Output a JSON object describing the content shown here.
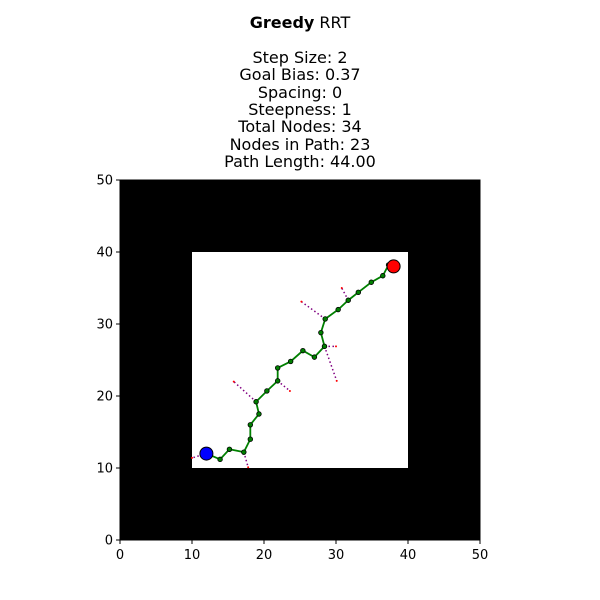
{
  "title": {
    "bold": "Greedy",
    "rest": " RRT",
    "lines": [
      "Step Size: 2",
      "Goal Bias: 0.37",
      "Spacing: 0",
      "Steepness: 1",
      "Total Nodes: 34",
      "Nodes in Path: 23",
      "Path Length: 44.00"
    ]
  },
  "chart_data": {
    "type": "scatter",
    "xlim": [
      0,
      50
    ],
    "ylim": [
      0,
      50
    ],
    "xticks": [
      0,
      10,
      20,
      30,
      40,
      50
    ],
    "yticks": [
      0,
      10,
      20,
      30,
      40,
      50
    ],
    "grid": false,
    "obstacle_color": "#000000",
    "free_region": {
      "x": [
        10,
        40
      ],
      "y": [
        10,
        40
      ],
      "color": "#ffffff"
    },
    "start": {
      "x": 12,
      "y": 12,
      "color": "#0000ff"
    },
    "goal": {
      "x": 38,
      "y": 38,
      "color": "#ff0000"
    },
    "path_color": "#008000",
    "path": [
      [
        12,
        12
      ],
      [
        13.9,
        11.2
      ],
      [
        15.2,
        12.6
      ],
      [
        17.2,
        12.2
      ],
      [
        18.1,
        14.0
      ],
      [
        18.1,
        16.0
      ],
      [
        19.3,
        17.5
      ],
      [
        18.9,
        19.2
      ],
      [
        20.4,
        20.7
      ],
      [
        21.9,
        22.1
      ],
      [
        21.9,
        23.9
      ],
      [
        23.7,
        24.8
      ],
      [
        25.4,
        26.3
      ],
      [
        27.0,
        25.4
      ],
      [
        28.4,
        26.9
      ],
      [
        27.9,
        28.8
      ],
      [
        28.5,
        30.7
      ],
      [
        30.3,
        32.0
      ],
      [
        31.7,
        33.3
      ],
      [
        33.1,
        34.4
      ],
      [
        34.9,
        35.8
      ],
      [
        36.5,
        36.7
      ],
      [
        37.3,
        38.2
      ],
      [
        38,
        38
      ]
    ],
    "branch_color": "#800080",
    "branches": [
      [
        [
          12,
          12
        ],
        [
          10.0,
          11.4
        ]
      ],
      [
        [
          17.2,
          12.2
        ],
        [
          17.8,
          10.1
        ]
      ],
      [
        [
          18.9,
          19.2
        ],
        [
          15.8,
          22.0
        ]
      ],
      [
        [
          21.9,
          22.1
        ],
        [
          23.6,
          20.7
        ]
      ],
      [
        [
          28.5,
          30.7
        ],
        [
          25.2,
          33.1
        ]
      ],
      [
        [
          28.4,
          26.9
        ],
        [
          30.0,
          26.9
        ]
      ],
      [
        [
          28.4,
          26.9
        ],
        [
          30.1,
          22.1
        ]
      ],
      [
        [
          31.7,
          33.3
        ],
        [
          30.8,
          35.0
        ]
      ]
    ]
  }
}
